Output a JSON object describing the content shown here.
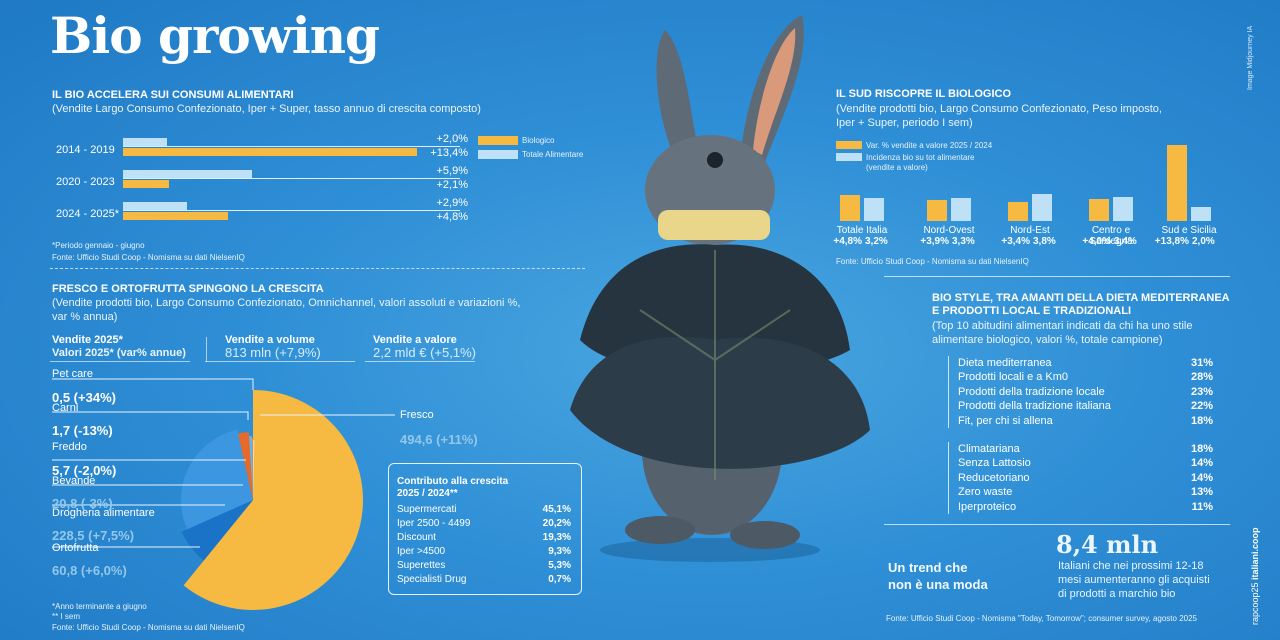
{
  "title": "Bio growing",
  "side_credit": "Image Midjourney IA",
  "side_brand_prefix": "rapcoop25 ",
  "side_brand": "italiani.coop",
  "section1": {
    "heading": "IL BIO ACCELERA SUI CONSUMI ALIMENTARI",
    "subtitle": "(Vendite Largo Consumo Confezionato, Iper + Super, tasso annuo di crescita composto)",
    "note1": "*Periodo gennaio - giugno",
    "note2": "Fonte: Ufficio Studi Coop - Nomisma su dati NielsenIQ"
  },
  "section2": {
    "heading": "FRESCO E ORTOFRUTTA SPINGONO LA CRESCITA",
    "subtitle1": "(Vendite prodotti bio, Largo Consumo Confezionato, Omnichannel, valori assoluti e variazioni %,",
    "subtitle2": "var % annua)",
    "kpi1_title": "Vendite 2025*",
    "kpi1_sub": "Valori 2025* (var% annue)",
    "kpi2_title": "Vendite a volume",
    "kpi2_value": "813 mln (+7,9%)",
    "kpi3_title": "Vendite a valore",
    "kpi3_value": "2,2 mld € (+5,1%)",
    "note1": "*Anno terminante a giugno",
    "note2": "** I sem",
    "note3": "Fonte: Ufficio Studi Coop - Nomisma su dati NielsenIQ",
    "contrib_title1": "Contributo alla crescita",
    "contrib_title2": "2025 / 2024**",
    "contrib": [
      {
        "name": "Supermercati",
        "value": "45,1%"
      },
      {
        "name": "Iper 2500 - 4499",
        "value": "20,2%"
      },
      {
        "name": "Discount",
        "value": "19,3%"
      },
      {
        "name": "Iper >4500",
        "value": "9,3%"
      },
      {
        "name": "Superettes",
        "value": "5,3%"
      },
      {
        "name": "Specialisti Drug",
        "value": "0,7%"
      }
    ]
  },
  "section3": {
    "heading": "IL SUD RISCOPRE IL BIOLOGICO",
    "subtitle1": "(Vendite prodotti bio, Largo Consumo Confezionato, Peso imposto,",
    "subtitle2": "Iper + Super, periodo I sem)",
    "legend1": "Var. % vendite a valore 2025 / 2024",
    "legend2a": "Incidenza bio su tot alimentare",
    "legend2b": "(vendite a valore)",
    "source": "Fonte: Ufficio Studi Coop - Nomisma su dati NielsenIQ"
  },
  "section4": {
    "heading1": "BIO STYLE, TRA AMANTI DELLA DIETA MEDITERRANEA",
    "heading2": "E PRODOTTI LOCAL E TRADIZIONALI",
    "subtitle1": "(Top 10 abitudini alimentari indicati da chi ha uno stile",
    "subtitle2": "alimentare biologico, valori %, totale campione)",
    "group1": [
      {
        "name": "Dieta mediterranea",
        "value": "31%"
      },
      {
        "name": "Prodotti locali e a Km0",
        "value": "28%"
      },
      {
        "name": "Prodotti della tradizione locale",
        "value": "23%"
      },
      {
        "name": "Prodotti della tradizione italiana",
        "value": "22%"
      },
      {
        "name": "Fit, per chi si allena",
        "value": "18%"
      }
    ],
    "group2": [
      {
        "name": "Climatariana",
        "value": "18%"
      },
      {
        "name": "Senza Lattosio",
        "value": "14%"
      },
      {
        "name": "Reducetoriano",
        "value": "14%"
      },
      {
        "name": "Zero waste",
        "value": "13%"
      },
      {
        "name": "Iperproteico",
        "value": "11%"
      }
    ],
    "trend1": "Un trend che",
    "trend2": "non è una moda",
    "big_value": "8,4 mln",
    "big_desc1": "Italiani che nei prossimi 12-18",
    "big_desc2": "mesi aumenteranno gli acquisti",
    "big_desc3": "di prodotti a marchio bio",
    "source": "Fonte: Ufficio Studi Coop - Nomisma \"Today, Tomorrow\"; consumer survey, agosto 2025"
  },
  "colors": {
    "biologico": "#f6b941",
    "totale": "#bfe1f8",
    "background": "#2f8fd6"
  },
  "chart_data": [
    {
      "type": "bar",
      "orientation": "horizontal",
      "categories": [
        "2014 - 2019",
        "2020 - 2023",
        "2024 - 2025*"
      ],
      "series": [
        {
          "name": "Biologico",
          "values": [
            13.4,
            2.1,
            4.8
          ],
          "labels": [
            "+13,4%",
            "+2,1%",
            "+4,8%"
          ]
        },
        {
          "name": "Totale Alimentare",
          "values": [
            2.0,
            5.9,
            2.9
          ],
          "labels": [
            "+2,0%",
            "+5,9%",
            "+2,9%"
          ]
        }
      ]
    },
    {
      "type": "pie",
      "categories": [
        "Fresco",
        "Ortofrutta",
        "Drogheria alimentare",
        "Bevande",
        "Freddo",
        "Carni",
        "Pet care"
      ],
      "values": [
        494.6,
        60.8,
        228.5,
        20.8,
        5.7,
        1.7,
        0.5
      ],
      "labels": [
        "494,6 (+11%)",
        "60,8 (+6,0%)",
        "228,5 (+7,5%)",
        "20,8 (-3%)",
        "5,7 (-2,0%)",
        "1,7 (-13%)",
        "0,5 (+34%)"
      ]
    },
    {
      "type": "bar",
      "categories": [
        "Totale Italia",
        "Nord-Ovest",
        "Nord-Est",
        "Centro e Sardegna",
        "Sud e Sicilia"
      ],
      "series": [
        {
          "name": "Var. % vendite a valore 2025 / 2024",
          "values": [
            4.8,
            3.9,
            3.4,
            4.0,
            13.8
          ],
          "labels": [
            "+4,8%",
            "+3,9%",
            "+3,4%",
            "+4,0%",
            "+13,8%"
          ]
        },
        {
          "name": "Incidenza bio su tot alimentare (vendite a valore)",
          "values": [
            3.2,
            3.3,
            3.8,
            3.4,
            2.0
          ],
          "labels": [
            "3,2%",
            "3,3%",
            "3,8%",
            "3,4%",
            "2,0%"
          ]
        }
      ]
    }
  ]
}
